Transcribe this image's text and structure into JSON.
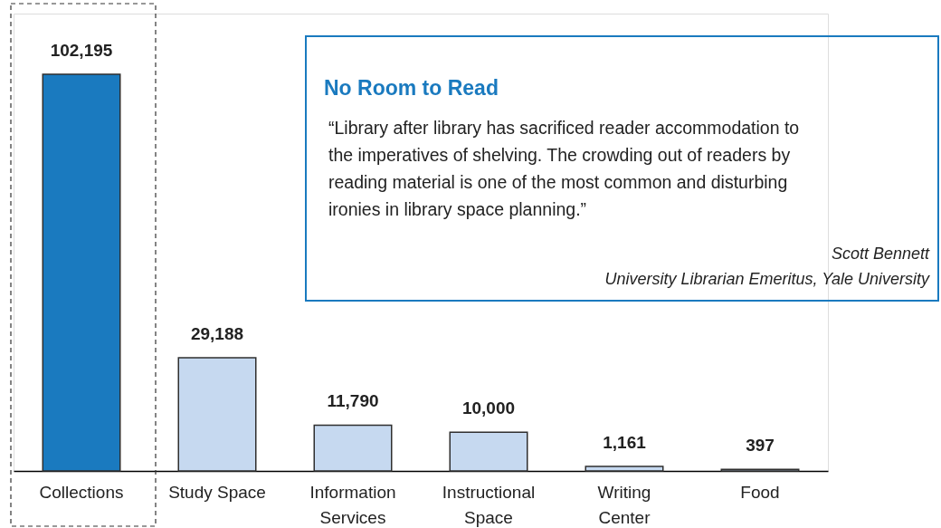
{
  "chart_data": {
    "type": "bar",
    "categories": [
      "Collections",
      "Study Space",
      "Information Services",
      "Instructional Space",
      "Writing Center",
      "Food"
    ],
    "values": [
      102195,
      29188,
      11790,
      10000,
      1161,
      397
    ],
    "colors": [
      "#1a7abf",
      "#c6d9f0",
      "#c6d9f0",
      "#c6d9f0",
      "#c6d9f0",
      "#c6d9f0"
    ],
    "value_labels": [
      "102,195",
      "29,188",
      "11,790",
      "10,000",
      "1,161",
      "397"
    ],
    "annotations": [
      "No Room to Read",
      "“Library after library has sacrificed reader accommodation to the imperatives of shelving. The crowding out of readers by reading material is one of the most common and disturbing ironies in library space planning.”",
      "Scott Bennett",
      "University Librarian Emeritus, Yale University"
    ]
  }
}
